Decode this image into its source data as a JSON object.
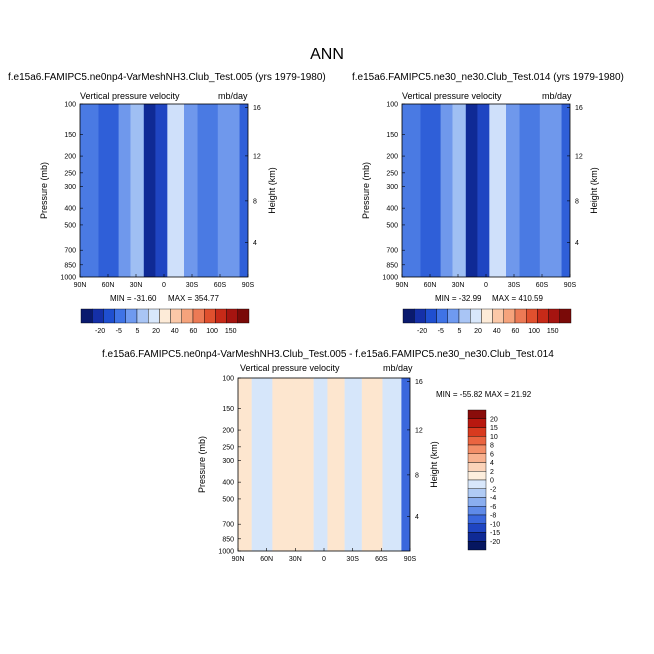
{
  "title": "ANN",
  "chart_data": [
    {
      "type": "heatmap",
      "title": "f.e15a6.FAMIPC5.ne0np4-VarMeshNH3.Club_Test.005 (yrs 1979-1980)",
      "subtitle_left": "Vertical pressure velocity",
      "subtitle_right": "mb/day",
      "xlabel": "",
      "ylabel": "Pressure (mb)",
      "ylabel_right": "Height (km)",
      "x_ticks": [
        "90N",
        "60N",
        "30N",
        "0",
        "30S",
        "60S",
        "90S"
      ],
      "y_ticks": [
        "100",
        "150",
        "200",
        "250",
        "300",
        "400",
        "500",
        "700",
        "850",
        "1000"
      ],
      "y_ticks_right": [
        "16",
        "12",
        "8",
        "4"
      ],
      "y_scale": "log",
      "ylim": [
        1000,
        100
      ],
      "min_label": "MIN = -31.60",
      "max_label": "MAX = 354.77",
      "colorbar_orientation": "horizontal",
      "colorbar_labels": [
        "-20",
        "-5",
        "5",
        "20",
        "40",
        "60",
        "100",
        "150"
      ],
      "colorbar_colors": [
        "#0a1a6e",
        "#1530a8",
        "#1f4fd0",
        "#3f73e6",
        "#6f9af0",
        "#a9c5f5",
        "#d8e7fb",
        "#fdebd8",
        "#fbc8a8",
        "#f5a37c",
        "#ec7a55",
        "#e0502e",
        "#c72a18",
        "#a51410",
        "#7a0a08"
      ],
      "regions": [
        {
          "x": [
            0.0,
            0.11
          ],
          "value": -4
        },
        {
          "x": [
            0.11,
            0.23
          ],
          "value": -10
        },
        {
          "x": [
            0.23,
            0.3
          ],
          "value": -3
        },
        {
          "x": [
            0.3,
            0.38
          ],
          "value": -1
        },
        {
          "x": [
            0.38,
            0.45
          ],
          "value": -20
        },
        {
          "x": [
            0.45,
            0.52
          ],
          "value": -12
        },
        {
          "x": [
            0.52,
            0.62
          ],
          "value": 1
        },
        {
          "x": [
            0.62,
            0.7
          ],
          "value": -2
        },
        {
          "x": [
            0.7,
            0.82
          ],
          "value": -6
        },
        {
          "x": [
            0.82,
            0.95
          ],
          "value": -3
        },
        {
          "x": [
            0.95,
            1.0
          ],
          "value": -8
        }
      ]
    },
    {
      "type": "heatmap",
      "title": "f.e15a6.FAMIPC5.ne30_ne30.Club_Test.014 (yrs 1979-1980)",
      "subtitle_left": "Vertical pressure velocity",
      "subtitle_right": "mb/day",
      "xlabel": "",
      "ylabel": "Pressure (mb)",
      "ylabel_right": "Height (km)",
      "x_ticks": [
        "90N",
        "60N",
        "30N",
        "0",
        "30S",
        "60S",
        "90S"
      ],
      "y_ticks": [
        "100",
        "150",
        "200",
        "250",
        "300",
        "400",
        "500",
        "700",
        "850",
        "1000"
      ],
      "y_ticks_right": [
        "16",
        "12",
        "8",
        "4"
      ],
      "y_scale": "log",
      "ylim": [
        1000,
        100
      ],
      "min_label": "MIN = -32.99",
      "max_label": "MAX = 410.59",
      "colorbar_orientation": "horizontal",
      "colorbar_labels": [
        "-20",
        "-5",
        "5",
        "20",
        "40",
        "60",
        "100",
        "150"
      ],
      "colorbar_colors": [
        "#0a1a6e",
        "#1530a8",
        "#1f4fd0",
        "#3f73e6",
        "#6f9af0",
        "#a9c5f5",
        "#d8e7fb",
        "#fdebd8",
        "#fbc8a8",
        "#f5a37c",
        "#ec7a55",
        "#e0502e",
        "#c72a18",
        "#a51410",
        "#7a0a08"
      ],
      "regions": [
        {
          "x": [
            0.0,
            0.11
          ],
          "value": -4
        },
        {
          "x": [
            0.11,
            0.23
          ],
          "value": -10
        },
        {
          "x": [
            0.23,
            0.3
          ],
          "value": -3
        },
        {
          "x": [
            0.3,
            0.38
          ],
          "value": -1
        },
        {
          "x": [
            0.38,
            0.45
          ],
          "value": -20
        },
        {
          "x": [
            0.45,
            0.52
          ],
          "value": -12
        },
        {
          "x": [
            0.52,
            0.62
          ],
          "value": 1
        },
        {
          "x": [
            0.62,
            0.7
          ],
          "value": -2
        },
        {
          "x": [
            0.7,
            0.82
          ],
          "value": -6
        },
        {
          "x": [
            0.82,
            0.95
          ],
          "value": -3
        },
        {
          "x": [
            0.95,
            1.0
          ],
          "value": -8
        }
      ]
    },
    {
      "type": "heatmap",
      "title": "f.e15a6.FAMIPC5.ne0np4-VarMeshNH3.Club_Test.005 - f.e15a6.FAMIPC5.ne30_ne30.Club_Test.014",
      "subtitle_left": "Vertical pressure velocity",
      "subtitle_right": "mb/day",
      "xlabel": "",
      "ylabel": "Pressure (mb)",
      "ylabel_right": "Height (km)",
      "x_ticks": [
        "90N",
        "60N",
        "30N",
        "0",
        "30S",
        "60S",
        "90S"
      ],
      "y_ticks": [
        "100",
        "150",
        "200",
        "250",
        "300",
        "400",
        "500",
        "700",
        "850",
        "1000"
      ],
      "y_ticks_right": [
        "16",
        "12",
        "8",
        "4"
      ],
      "y_scale": "log",
      "ylim": [
        1000,
        100
      ],
      "min_max_label": "MIN = -55.82  MAX = 21.92",
      "colorbar_orientation": "vertical",
      "colorbar_labels": [
        "20",
        "15",
        "10",
        "8",
        "6",
        "4",
        "2",
        "0",
        "-2",
        "-4",
        "-6",
        "-8",
        "-10",
        "-15",
        "-20"
      ],
      "colorbar_colors": [
        "#8a0c0a",
        "#b8180f",
        "#d83a1f",
        "#ea6440",
        "#f38e68",
        "#f8b18f",
        "#fbd3b9",
        "#fdeedd",
        "#d8e7fb",
        "#b0cbf5",
        "#8aaef0",
        "#5f8ae8",
        "#3a67dd",
        "#1f45c2",
        "#0f2a95",
        "#061660"
      ],
      "regions": [
        {
          "x": [
            0.0,
            0.08
          ],
          "value": 0.5
        },
        {
          "x": [
            0.08,
            0.2
          ],
          "value": -0.5
        },
        {
          "x": [
            0.2,
            0.32
          ],
          "value": 0.5
        },
        {
          "x": [
            0.32,
            0.44
          ],
          "value": 0.5
        },
        {
          "x": [
            0.44,
            0.52
          ],
          "value": -0.5
        },
        {
          "x": [
            0.52,
            0.62
          ],
          "value": 0.5
        },
        {
          "x": [
            0.62,
            0.72
          ],
          "value": -0.5
        },
        {
          "x": [
            0.72,
            0.84
          ],
          "value": 0.5
        },
        {
          "x": [
            0.84,
            0.95
          ],
          "value": -0.5
        },
        {
          "x": [
            0.95,
            1.0
          ],
          "value": -2
        }
      ]
    }
  ]
}
